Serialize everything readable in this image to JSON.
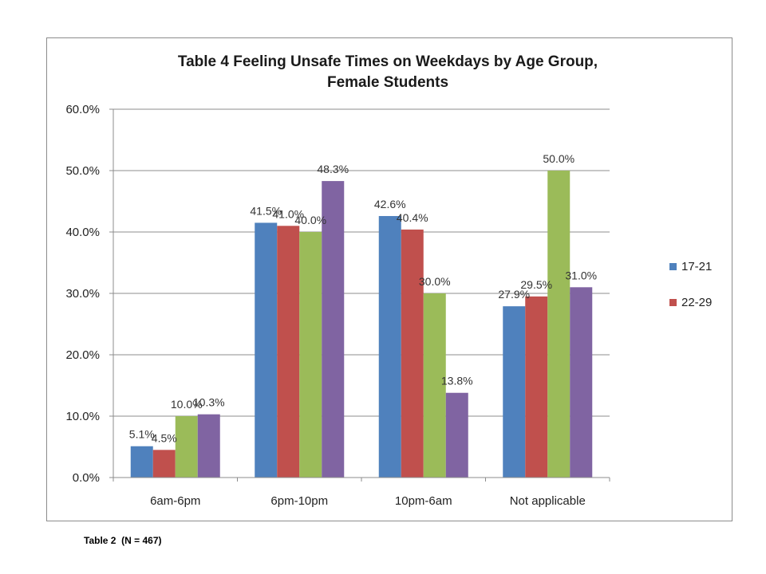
{
  "footnote": "Table 2  (N = 467)",
  "chart_data": {
    "type": "bar",
    "title_lines": [
      "Table 4     Feeling Unsafe Times on Weekdays by Age Group,",
      "Female Students"
    ],
    "categories": [
      "6am-6pm",
      "6pm-10pm",
      "10pm-6am",
      "Not applicable"
    ],
    "series": [
      {
        "name": "17-21",
        "color": "#4f81bd",
        "values": [
          5.1,
          41.5,
          42.6,
          27.9
        ],
        "labels": [
          "5.1%",
          "41.5%",
          "42.6%",
          "27.9%"
        ]
      },
      {
        "name": "22-29",
        "color": "#c0504d",
        "values": [
          4.5,
          41.0,
          40.4,
          29.5
        ],
        "labels": [
          "4.5%",
          "41.0%",
          "40.4%",
          "29.5%"
        ]
      },
      {
        "color": "#9bbb59",
        "values": [
          10.0,
          40.0,
          30.0,
          50.0
        ],
        "labels": [
          "10.0%",
          "40.0%",
          "30.0%",
          "50.0%"
        ]
      },
      {
        "color": "#8064a2",
        "values": [
          10.3,
          48.3,
          13.8,
          31.0
        ],
        "labels": [
          "10.3%",
          "48.3%",
          "13.8%",
          "31.0%"
        ]
      }
    ],
    "y_ticks": [
      "0.0%",
      "10.0%",
      "20.0%",
      "30.0%",
      "40.0%",
      "50.0%",
      "60.0%"
    ],
    "ylim": [
      0,
      60
    ],
    "grid": true,
    "legend": "right"
  }
}
